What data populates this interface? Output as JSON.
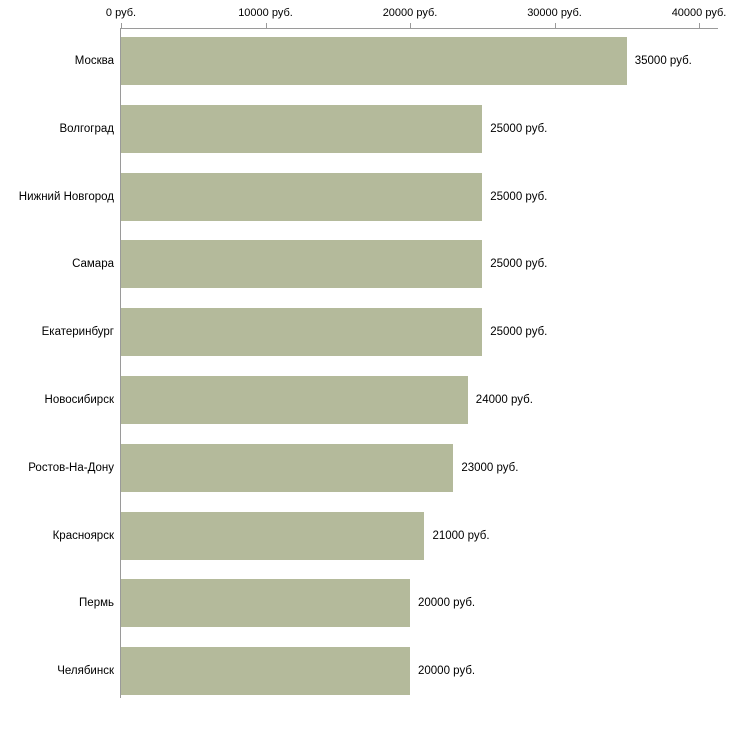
{
  "chart_data": {
    "type": "bar",
    "orientation": "horizontal",
    "title": "",
    "xlabel": "",
    "ylabel": "",
    "grid": false,
    "legend": false,
    "categories": [
      "Москва",
      "Волгоград",
      "Нижний Новгород",
      "Самара",
      "Екатеринбург",
      "Новосибирск",
      "Ростов-На-Дону",
      "Красноярск",
      "Пермь",
      "Челябинск"
    ],
    "values": [
      35000,
      25000,
      25000,
      25000,
      25000,
      24000,
      23000,
      21000,
      20000,
      20000
    ],
    "value_labels": [
      "35000 руб.",
      "25000 руб.",
      "25000 руб.",
      "25000 руб.",
      "25000 руб.",
      "24000 руб.",
      "23000 руб.",
      "21000 руб.",
      "20000 руб.",
      "20000 руб."
    ],
    "x_ticks": [
      0,
      10000,
      20000,
      30000,
      40000
    ],
    "x_tick_labels": [
      "0 руб.",
      "10000 руб.",
      "20000 руб.",
      "30000 руб.",
      "40000 руб."
    ],
    "xlim": [
      0,
      41400
    ],
    "bar_color": "#b4ba9b",
    "axis_color": "#9a9a9a",
    "text_color": "#000000",
    "background_color": "#ffffff"
  }
}
